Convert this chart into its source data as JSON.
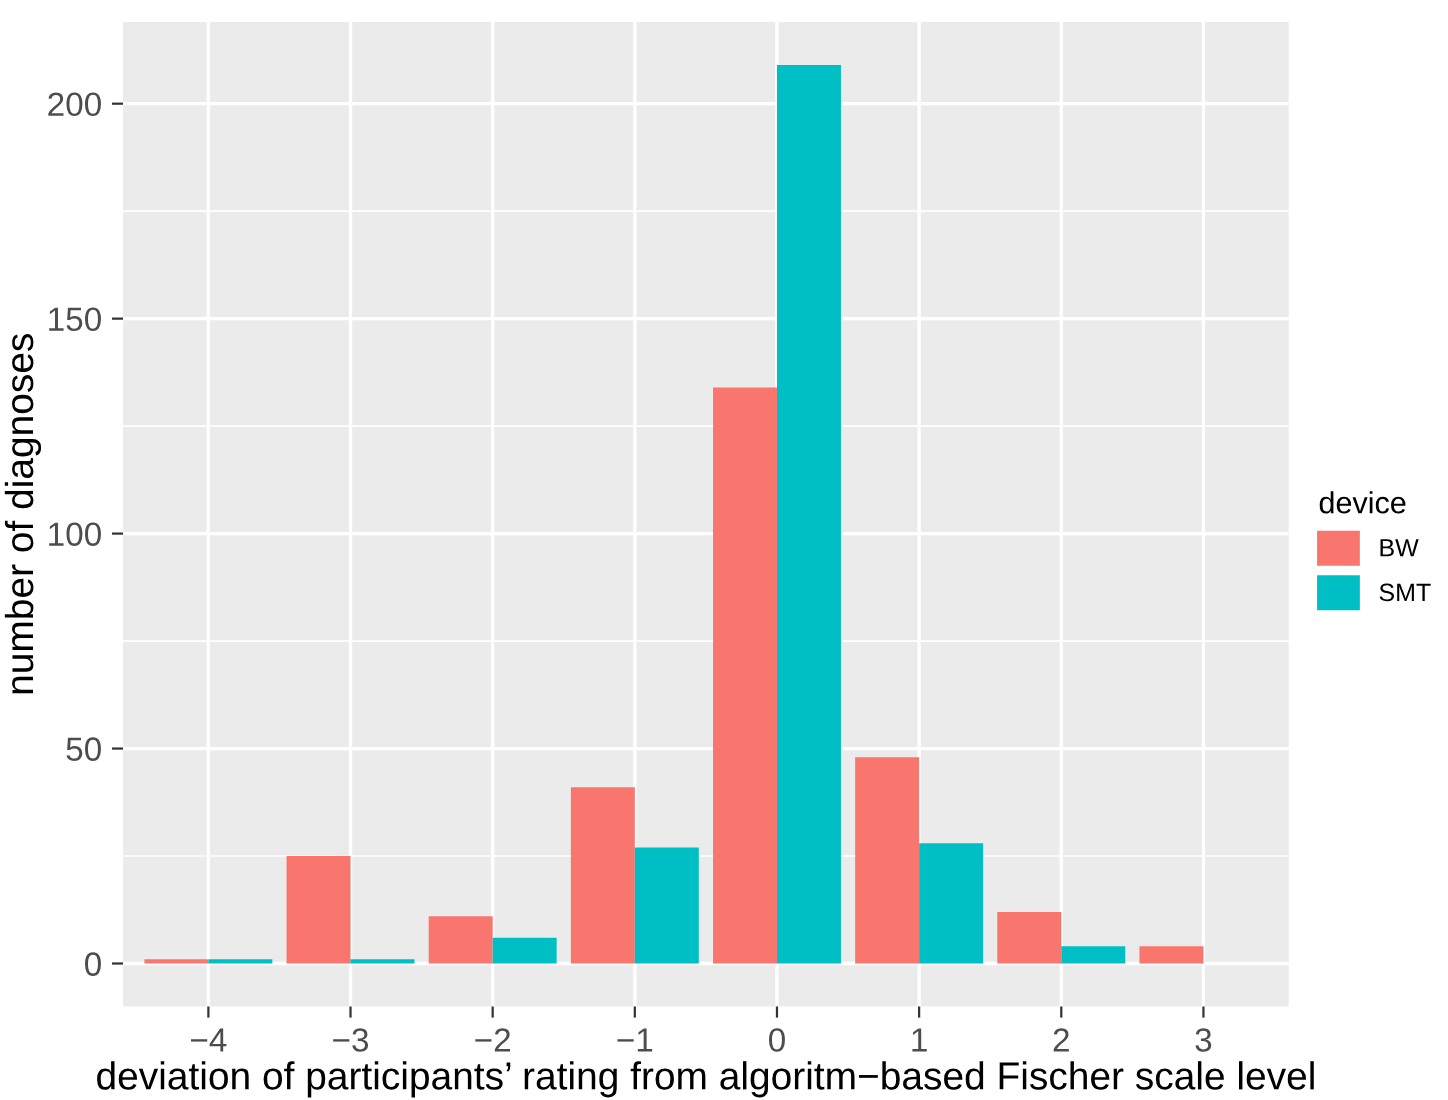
{
  "chart_data": {
    "type": "bar",
    "xlabel": "deviation of participants’ rating from algoritm−based Fischer scale level",
    "ylabel": "number of diagnoses",
    "legend_title": "device",
    "categories": [
      "−4",
      "−3",
      "−2",
      "−1",
      "0",
      "1",
      "2",
      "3"
    ],
    "series": [
      {
        "name": "BW",
        "color": "#f8766d",
        "values": [
          1,
          25,
          11,
          41,
          134,
          48,
          12,
          4
        ]
      },
      {
        "name": "SMT",
        "color": "#00bfc4",
        "values": [
          1,
          1,
          6,
          27,
          209,
          28,
          4,
          null
        ]
      }
    ],
    "ylim": [
      -10,
      219
    ],
    "yticks": [
      0,
      50,
      100,
      150,
      200
    ],
    "grid": true,
    "legend": "right"
  }
}
